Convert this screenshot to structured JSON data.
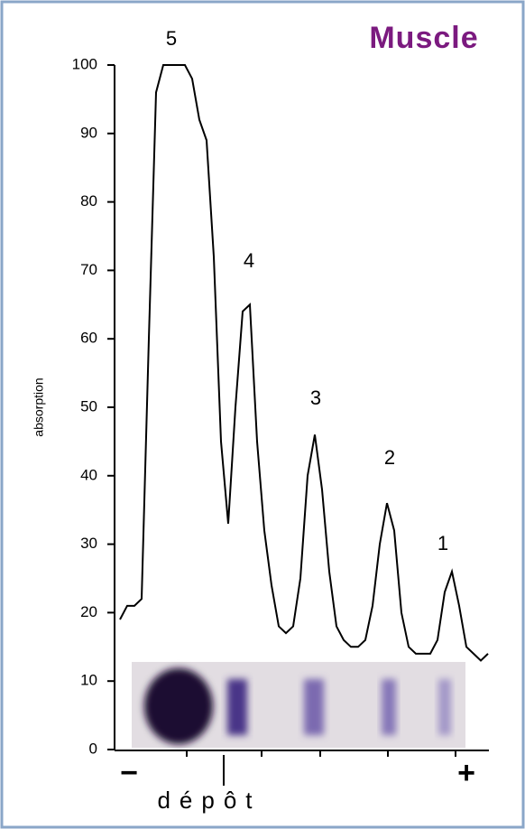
{
  "chart_data": {
    "type": "line",
    "title": "Muscle",
    "y_label": "absorption",
    "values": [
      19,
      21,
      21,
      22,
      60,
      96,
      100,
      100,
      100,
      100,
      98,
      92,
      89,
      72,
      45,
      33,
      50,
      64,
      65,
      45,
      32,
      24,
      18,
      17,
      18,
      25,
      40,
      46,
      38,
      26,
      18,
      16,
      15,
      15,
      16,
      21,
      30,
      36,
      32,
      20,
      15,
      14,
      14,
      14,
      16,
      23,
      26,
      21,
      15,
      14,
      13,
      14
    ],
    "color": "#000000",
    "ylim": [
      0,
      100
    ],
    "yticks": [
      0,
      10,
      20,
      30,
      40,
      50,
      60,
      70,
      80,
      90,
      100
    ],
    "annotations": [
      "5",
      "4",
      "3",
      "2",
      "1"
    ],
    "x_start_label": "−",
    "x_end_label": "+",
    "x_marker_label": "dépôt"
  }
}
